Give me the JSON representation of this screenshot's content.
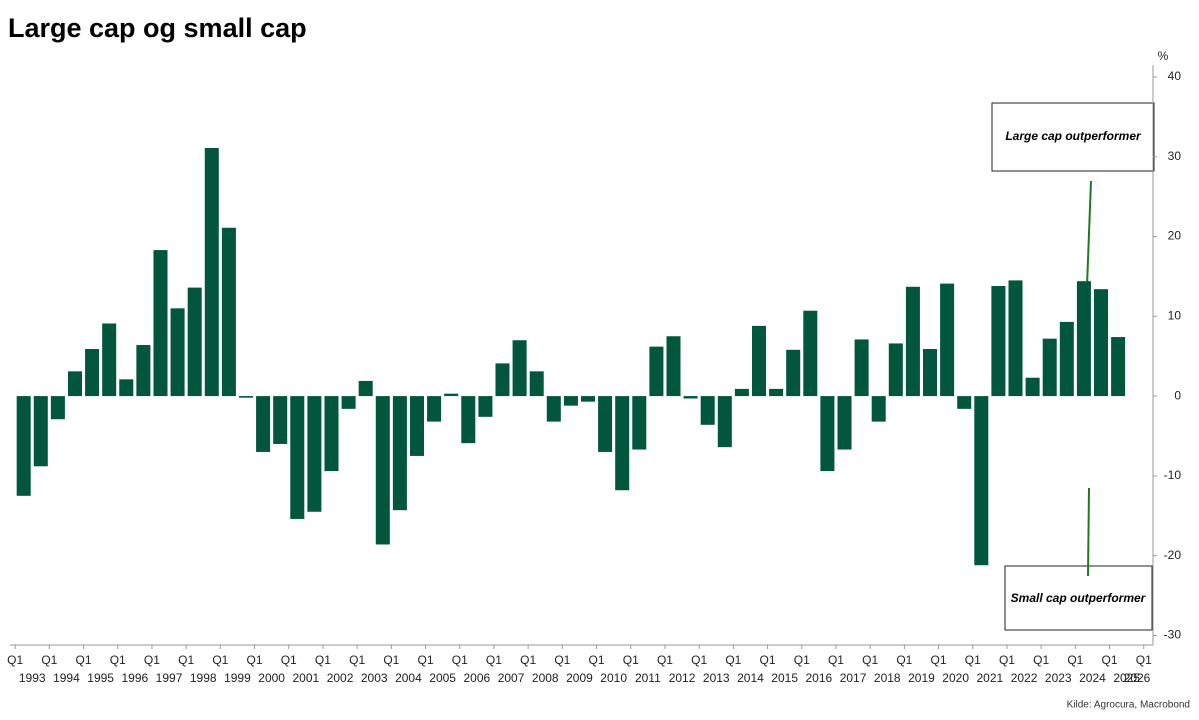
{
  "chart_data": {
    "type": "bar",
    "title": "Large cap og small cap",
    "y_unit": "%",
    "source": "Kilde: Agrocura, Macrobond",
    "annotations": [
      "Large cap outperformer",
      "Small cap outperformer"
    ],
    "color": "#02563b",
    "x_tick_prefix": "Q1",
    "x": [
      1993.25,
      1993.75,
      1994.25,
      1994.75,
      1995.25,
      1995.75,
      1996.25,
      1996.75,
      1997.25,
      1997.75,
      1998.25,
      1998.75,
      1999.25,
      1999.75,
      2000.25,
      2000.75,
      2001.25,
      2001.75,
      2002.25,
      2002.75,
      2003.25,
      2003.75,
      2004.25,
      2004.75,
      2005.25,
      2005.75,
      2006.25,
      2006.75,
      2007.25,
      2007.75,
      2008.25,
      2008.75,
      2009.25,
      2009.75,
      2010.25,
      2010.75,
      2011.25,
      2011.75,
      2012.25,
      2012.75,
      2013.25,
      2013.75,
      2014.25,
      2014.75,
      2015.25,
      2015.75,
      2016.25,
      2016.75,
      2017.25,
      2017.75,
      2018.25,
      2018.75,
      2019.25,
      2019.75,
      2020.25,
      2020.75,
      2021.25,
      2021.75,
      2022.25,
      2022.75,
      2023.25,
      2023.75,
      2024.25,
      2024.75,
      2025.25
    ],
    "values": [
      -12.5,
      -8.8,
      -2.9,
      3.1,
      5.9,
      9.1,
      2.1,
      6.4,
      18.3,
      11,
      13.6,
      31.1,
      21.1,
      -0.2,
      -7,
      -6,
      -15.4,
      -14.5,
      -9.4,
      -1.6,
      1.9,
      -18.6,
      -14.3,
      -7.5,
      -3.2,
      0.3,
      -5.9,
      -2.6,
      4.1,
      7,
      3.1,
      -3.2,
      -1.2,
      -0.7,
      -7,
      -11.8,
      -6.7,
      6.2,
      7.5,
      -0.3,
      -3.6,
      -6.4,
      0.9,
      8.8,
      0.9,
      5.8,
      10.7,
      -9.4,
      -6.7,
      7.1,
      -3.2,
      6.6,
      13.7,
      5.9,
      14.1,
      -1.6,
      -21.2,
      13.8,
      14.5,
      2.3,
      7.2,
      9.3,
      14.4,
      13.4,
      7.4
    ],
    "xlim": [
      1992.85,
      2026.27
    ],
    "xticks": [
      1993,
      1994,
      1995,
      1996,
      1997,
      1998,
      1999,
      2000,
      2001,
      2002,
      2003,
      2004,
      2005,
      2006,
      2007,
      2008,
      2009,
      2010,
      2011,
      2012,
      2013,
      2014,
      2015,
      2016,
      2017,
      2018,
      2019,
      2020,
      2021,
      2022,
      2023,
      2024,
      2025,
      2026
    ],
    "ylim": [
      -31.2,
      41.5
    ],
    "yticks": [
      -30,
      -20,
      -10,
      0,
      10,
      20,
      30,
      40
    ],
    "grid": false
  }
}
